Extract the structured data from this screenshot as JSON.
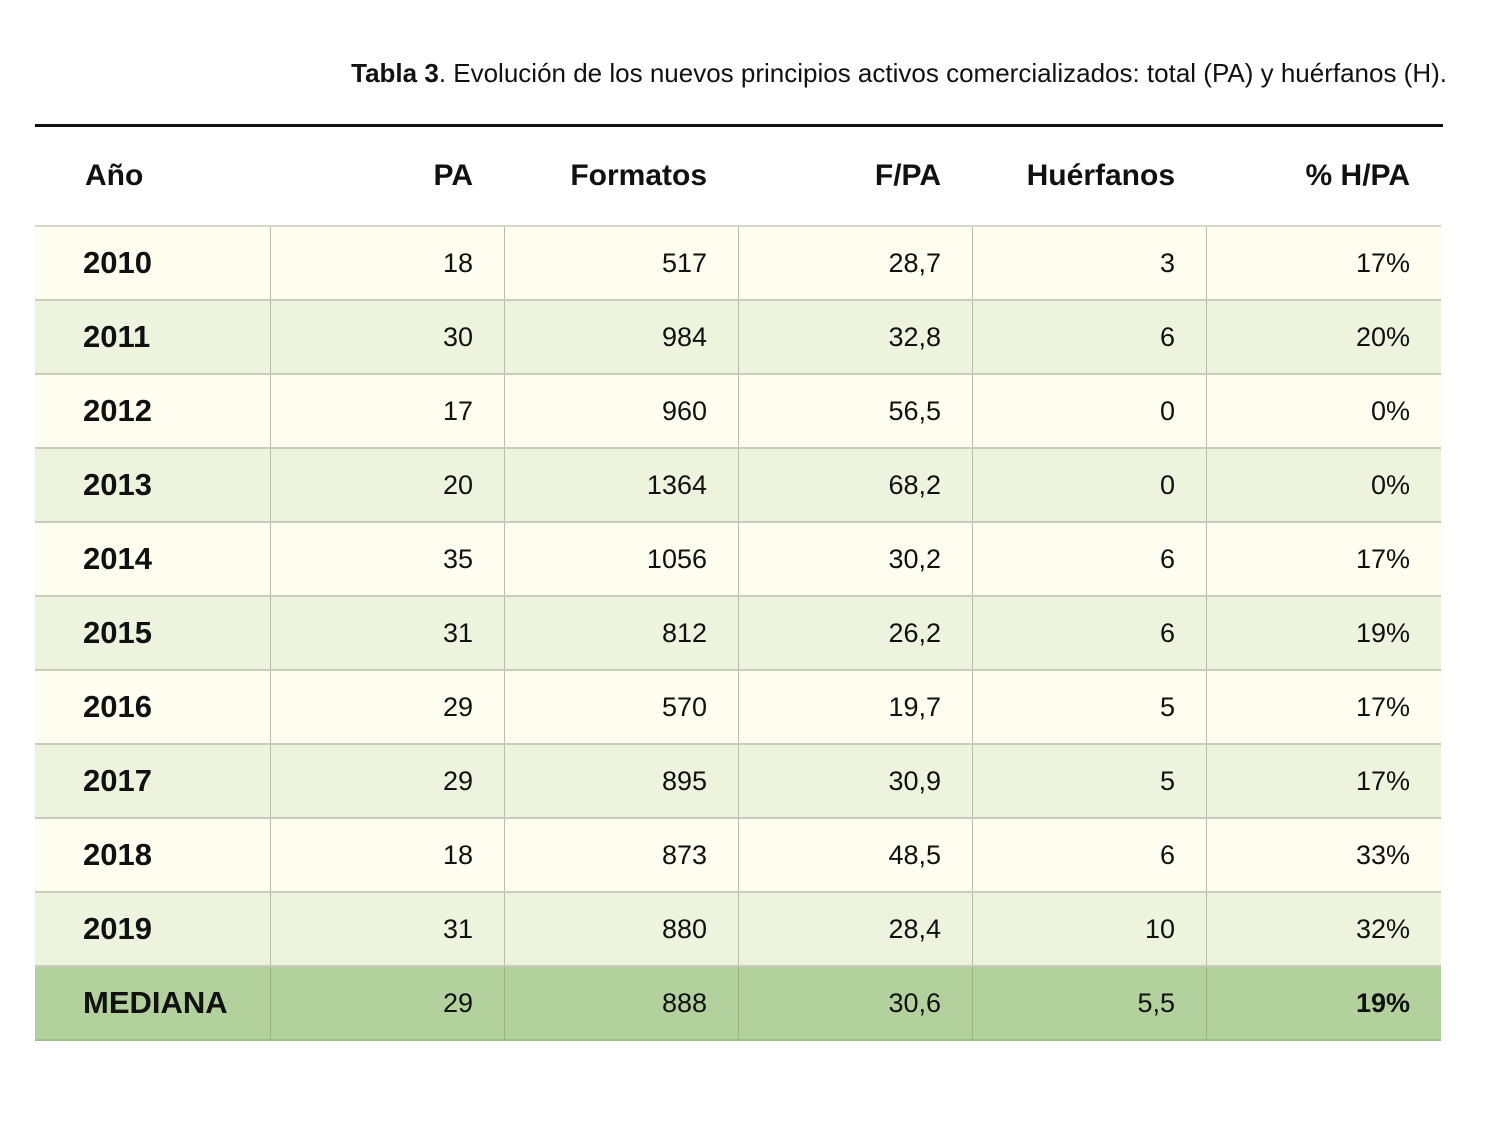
{
  "caption": {
    "label": "Tabla 3",
    "text": ". Evolución de los nuevos principios activos comercializados: total (PA) y huérfanos (H)."
  },
  "colors": {
    "odd_row": "#fdfdf0",
    "even_row": "#eef3de",
    "median_row": "#b2d19d"
  },
  "table": {
    "headers": [
      "Año",
      "PA",
      "Formatos",
      "F/PA",
      "Huérfanos",
      "% H/PA"
    ],
    "rows": [
      [
        "2010",
        "18",
        "517",
        "28,7",
        "3",
        "17%"
      ],
      [
        "2011",
        "30",
        "984",
        "32,8",
        "6",
        "20%"
      ],
      [
        "2012",
        "17",
        "960",
        "56,5",
        "0",
        "0%"
      ],
      [
        "2013",
        "20",
        "1364",
        "68,2",
        "0",
        "0%"
      ],
      [
        "2014",
        "35",
        "1056",
        "30,2",
        "6",
        "17%"
      ],
      [
        "2015",
        "31",
        "812",
        "26,2",
        "6",
        "19%"
      ],
      [
        "2016",
        "29",
        "570",
        "19,7",
        "5",
        "17%"
      ],
      [
        "2017",
        "29",
        "895",
        "30,9",
        "5",
        "17%"
      ],
      [
        "2018",
        "18",
        "873",
        "48,5",
        "6",
        "33%"
      ],
      [
        "2019",
        "31",
        "880",
        "28,4",
        "10",
        "32%"
      ]
    ],
    "median": [
      "MEDIANA",
      "29",
      "888",
      "30,6",
      "5,5",
      "19%"
    ]
  }
}
